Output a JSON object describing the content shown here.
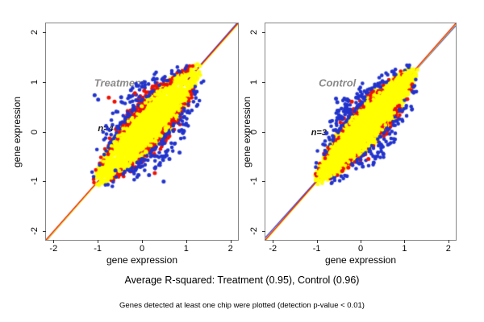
{
  "captions": {
    "r_squared": "Average R-squared: Treatment (0.95), Control (0.96)",
    "note": "Genes detected at least one chip were plotted (detection p-value < 0.01)"
  },
  "palette": {
    "yellow": "#ffff00",
    "red": "#ee1100",
    "blue": "#2233cc",
    "box_gray": "#858585",
    "label_gray": "#8a8a8a"
  },
  "chart_data": [
    {
      "type": "scatter",
      "group_label": "Treatment",
      "group_label_pos": {
        "x": -0.51,
        "y": 0.97
      },
      "annotation": "n=4",
      "annotation_pos": {
        "x": -0.82,
        "y": 0.06
      },
      "r_squared": 0.95,
      "xlabel": "gene expression",
      "ylabel": "gene expression",
      "xlim": [
        -2.17,
        2.17
      ],
      "ylim": [
        -2.17,
        2.17
      ],
      "xticks": [
        -2,
        -1,
        0,
        1,
        2
      ],
      "xtick_labels": [
        "-2",
        "-1",
        "0",
        "1",
        "2"
      ],
      "yticks": [
        -2,
        -1,
        0,
        1,
        2
      ],
      "ytick_labels": [
        "-2",
        "-1",
        "0",
        "1",
        "2"
      ],
      "identity_lines": [
        {
          "color": "#2233cc",
          "slope": 1.012,
          "intercept": 0.0
        },
        {
          "color": "#ffff00",
          "slope": 1.0,
          "intercept": -0.022
        },
        {
          "color": "#ee1100",
          "slope": 1.0,
          "intercept": 0.0
        }
      ],
      "cloud": {
        "t_min": -1.06,
        "t_max": 1.33,
        "center_width": 0.44,
        "series": [
          {
            "name": "chip-yellow",
            "color": "#ffff00",
            "n": 2600,
            "edge": 0,
            "spread": 1.0,
            "side_bias": 0.5,
            "radius": 2.4
          },
          {
            "name": "chip-red",
            "color": "#ee1100",
            "n": 310,
            "edge": 0.7,
            "spread": 0.55,
            "side_bias": 0.5,
            "radius": 2.3
          },
          {
            "name": "chip-blue",
            "color": "#2233cc",
            "n": 240,
            "edge": 0.95,
            "spread": 0.9,
            "side_bias": 0.45,
            "radius": 2.3
          },
          {
            "name": "chip-yellow-overlay",
            "color": "#ffff00",
            "n": 220,
            "edge": 0.45,
            "spread": 0.4,
            "side_bias": 0.5,
            "radius": 2.3
          }
        ]
      },
      "outliers": [
        {
          "color": "#2233cc",
          "points": [
            [
              -1.07,
              0.73
            ],
            [
              -0.99,
              0.64
            ],
            [
              -0.47,
              0.69
            ],
            [
              -0.25,
              0.83
            ],
            [
              0.0,
              0.9
            ],
            [
              -0.6,
              -0.78
            ],
            [
              0.16,
              -0.87
            ],
            [
              0.49,
              -1.0
            ],
            [
              0.85,
              -0.42
            ],
            [
              0.62,
              -0.55
            ]
          ]
        },
        {
          "color": "#ee1100",
          "points": [
            [
              -0.75,
              0.68
            ],
            [
              -0.62,
              0.6
            ],
            [
              -0.16,
              0.77
            ],
            [
              0.29,
              -0.83
            ],
            [
              0.05,
              0.82
            ]
          ]
        }
      ],
      "seed": 7
    },
    {
      "type": "scatter",
      "group_label": "Control",
      "group_label_pos": {
        "x": -0.53,
        "y": 0.97
      },
      "annotation": "n=3",
      "annotation_pos": {
        "x": -0.95,
        "y": -0.02
      },
      "r_squared": 0.96,
      "xlabel": "gene expression",
      "ylabel": "gene expression",
      "xlim": [
        -2.17,
        2.17
      ],
      "ylim": [
        -2.17,
        2.17
      ],
      "xticks": [
        -2,
        -1,
        0,
        1,
        2
      ],
      "xtick_labels": [
        "-2",
        "-1",
        "0",
        "1",
        "2"
      ],
      "yticks": [
        -2,
        -1,
        0,
        1,
        2
      ],
      "ytick_labels": [
        "-2",
        "-1",
        "0",
        "1",
        "2"
      ],
      "identity_lines": [
        {
          "color": "#2233cc",
          "slope": 0.978,
          "intercept": 0.0
        },
        {
          "color": "#ffff00",
          "slope": 1.0,
          "intercept": -0.018
        },
        {
          "color": "#ee1100",
          "slope": 1.0,
          "intercept": 0.0
        }
      ],
      "cloud": {
        "t_min": -1.05,
        "t_max": 1.28,
        "center_width": 0.4,
        "series": [
          {
            "name": "chip-yellow",
            "color": "#ffff00",
            "n": 2600,
            "edge": 0,
            "spread": 1.0,
            "side_bias": 0.5,
            "radius": 2.4
          },
          {
            "name": "chip-red",
            "color": "#ee1100",
            "n": 160,
            "edge": 0.7,
            "spread": 0.5,
            "side_bias": 0.5,
            "radius": 2.3
          },
          {
            "name": "chip-blue",
            "color": "#2233cc",
            "n": 235,
            "edge": 0.95,
            "spread": 0.9,
            "side_bias": 0.62,
            "radius": 2.3
          },
          {
            "name": "chip-yellow-overlay",
            "color": "#ffff00",
            "n": 200,
            "edge": 0.45,
            "spread": 0.4,
            "side_bias": 0.5,
            "radius": 2.3
          }
        ]
      },
      "outliers": [
        {
          "color": "#2233cc",
          "points": [
            [
              -0.56,
              0.66
            ],
            [
              -0.53,
              0.59
            ],
            [
              -0.69,
              0.2
            ],
            [
              -0.35,
              0.55
            ],
            [
              0.05,
              -0.7
            ],
            [
              0.3,
              -0.62
            ],
            [
              0.16,
              0.78
            ],
            [
              -0.1,
              0.68
            ],
            [
              0.45,
              0.9
            ],
            [
              0.52,
              -0.45
            ]
          ]
        },
        {
          "color": "#ee1100",
          "points": [
            [
              -0.42,
              -0.79
            ],
            [
              -0.28,
              -0.72
            ],
            [
              0.18,
              -0.55
            ],
            [
              -0.2,
              0.6
            ]
          ]
        }
      ],
      "seed": 13
    }
  ]
}
